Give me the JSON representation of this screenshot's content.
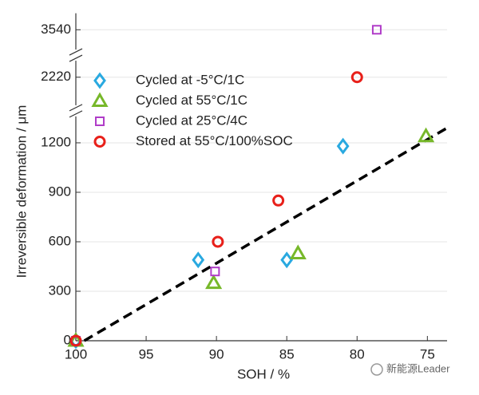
{
  "chart_data": {
    "type": "scatter",
    "xlabel": "SOH / %",
    "ylabel": "Irreversible deformation / μm",
    "xlim": [
      100,
      73.6
    ],
    "xticks": [
      100,
      95,
      90,
      85,
      80,
      75
    ],
    "ysegments": [
      [
        0,
        1360
      ],
      [
        2050,
        2320
      ],
      [
        3420,
        3640
      ]
    ],
    "yticks": [
      0,
      300,
      600,
      900,
      1200,
      2220,
      3540
    ],
    "grid": true,
    "legend": "upper left",
    "series": [
      {
        "name": "Cycled at -5°C/1C",
        "marker": "diamond",
        "color": "#29a9e0",
        "x": [
          100,
          91.3,
          85,
          81
        ],
        "values": [
          0,
          490,
          490,
          1180
        ]
      },
      {
        "name": "Cycled at 55°C/1C",
        "marker": "triangle",
        "color": "#77b82a",
        "x": [
          100,
          90.2,
          84.2,
          75.1
        ],
        "values": [
          0,
          350,
          530,
          1240
        ]
      },
      {
        "name": "Cycled at 25°C/4C",
        "marker": "square",
        "color": "#b03cc8",
        "x": [
          100,
          90.1,
          78.6
        ],
        "values": [
          0,
          420,
          3540
        ]
      },
      {
        "name": "Stored at 55°C/100%SOC",
        "marker": "circle",
        "color": "#e8201a",
        "x": [
          100,
          89.9,
          85.6,
          80
        ],
        "values": [
          0,
          600,
          850,
          2220
        ]
      }
    ],
    "fit_line": {
      "x": [
        99.4,
        73.6
      ],
      "values": [
        0,
        1290
      ],
      "color": "#000000"
    },
    "watermark": "新能源Leader"
  }
}
